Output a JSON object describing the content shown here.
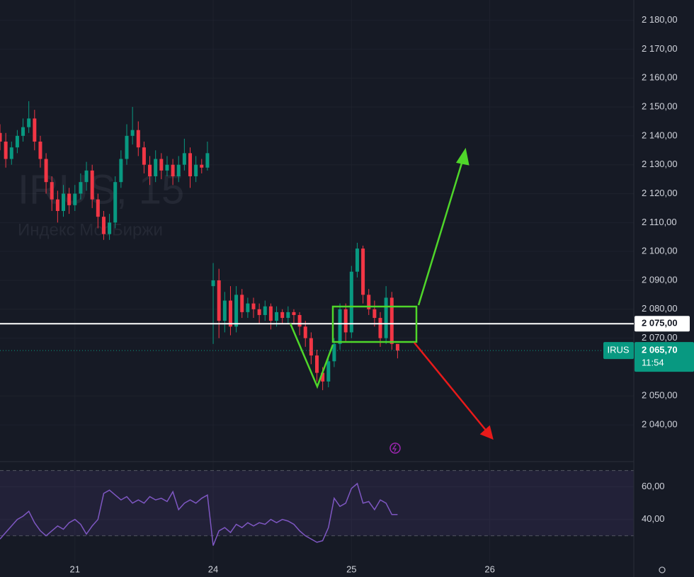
{
  "chart_data": [
    {
      "type": "candlestick",
      "watermark": {
        "symbol": "IRUS, 15",
        "name": "Индекс МосБиржи"
      },
      "x": [
        -13,
        -12,
        -11,
        -10,
        -9,
        -8,
        -7,
        -6,
        -5,
        -4,
        -3,
        -2,
        -1,
        0,
        1,
        2,
        3,
        4,
        5,
        6,
        7,
        8,
        9,
        10,
        11,
        12,
        13,
        14,
        15,
        16,
        17,
        18,
        19,
        20,
        21,
        22,
        23,
        24,
        25,
        26,
        27,
        28,
        29,
        30,
        31,
        32,
        33,
        34,
        35,
        36,
        37,
        38,
        39,
        40,
        41,
        42,
        43,
        44,
        45,
        46,
        47,
        48,
        49,
        50,
        51,
        52,
        53,
        54,
        55,
        56
      ],
      "open": [
        2141,
        2138,
        2132,
        2136,
        2140,
        2143,
        2146,
        2138,
        2132,
        2124,
        2118,
        2114,
        2120,
        2116,
        2120,
        2124,
        2128,
        2118,
        2112,
        2106,
        2110,
        2124,
        2132,
        2140,
        2142,
        2136,
        2130,
        2126,
        2132,
        2128,
        2130,
        2126,
        2130,
        2134,
        2126,
        2130,
        2129,
        2088,
        2090,
        2076,
        2083,
        2074,
        2085,
        2079,
        2082,
        2080,
        2078,
        2081,
        2076,
        2079,
        2077,
        2079,
        2078,
        2074,
        2070,
        2064,
        2058,
        2055,
        2062,
        2068,
        2080,
        2072,
        2093,
        2101,
        2085,
        2080,
        2077,
        2070,
        2084,
        2068
      ],
      "high": [
        2144,
        2141,
        2138,
        2142,
        2146,
        2152,
        2149,
        2140,
        2134,
        2126,
        2121,
        2123,
        2122,
        2123,
        2127,
        2131,
        2130,
        2120,
        2114,
        2113,
        2126,
        2135,
        2144,
        2150,
        2145,
        2138,
        2133,
        2135,
        2134,
        2133,
        2132,
        2133,
        2139,
        2136,
        2133,
        2132,
        2138,
        2096,
        2094,
        2086,
        2088,
        2088,
        2087,
        2084,
        2084,
        2082,
        2083,
        2082,
        2081,
        2080,
        2081,
        2080,
        2079,
        2076,
        2072,
        2066,
        2060,
        2064,
        2070,
        2082,
        2082,
        2095,
        2103,
        2102,
        2087,
        2083,
        2079,
        2088,
        2086,
        2068
      ],
      "low": [
        2135,
        2129,
        2130,
        2134,
        2138,
        2141,
        2135,
        2129,
        2120,
        2114,
        2110,
        2112,
        2113,
        2114,
        2118,
        2121,
        2115,
        2108,
        2104,
        2104,
        2108,
        2122,
        2130,
        2137,
        2133,
        2127,
        2123,
        2124,
        2125,
        2126,
        2123,
        2124,
        2128,
        2122,
        2124,
        2127,
        2128,
        2068,
        2070,
        2072,
        2071,
        2072,
        2077,
        2077,
        2077,
        2075,
        2076,
        2073,
        2074,
        2075,
        2075,
        2075,
        2071,
        2067,
        2061,
        2055,
        2052,
        2053,
        2060,
        2066,
        2069,
        2070,
        2091,
        2082,
        2078,
        2074,
        2067,
        2068,
        2066,
        2063
      ],
      "close": [
        2138,
        2132,
        2136,
        2140,
        2143,
        2146,
        2138,
        2132,
        2124,
        2118,
        2114,
        2120,
        2116,
        2120,
        2124,
        2128,
        2118,
        2112,
        2106,
        2110,
        2124,
        2132,
        2140,
        2142,
        2136,
        2130,
        2126,
        2132,
        2128,
        2130,
        2126,
        2130,
        2134,
        2126,
        2130,
        2129,
        2134,
        2090,
        2076,
        2083,
        2074,
        2085,
        2079,
        2082,
        2080,
        2078,
        2081,
        2076,
        2079,
        2077,
        2079,
        2078,
        2074,
        2070,
        2064,
        2058,
        2055,
        2062,
        2068,
        2080,
        2072,
        2093,
        2101,
        2085,
        2080,
        2077,
        2070,
        2084,
        2068,
        2065.7
      ],
      "up_color": "#089981",
      "down_color": "#f23645",
      "xlim": [
        -13,
        97
      ],
      "ylim": [
        2029,
        2187
      ],
      "yticks": [
        {
          "value": 2040,
          "label": "2 040,00"
        },
        {
          "value": 2050,
          "label": "2 050,00"
        },
        {
          "value": 2070,
          "label": "2 070,00"
        },
        {
          "value": 2080,
          "label": "2 080,00"
        },
        {
          "value": 2090,
          "label": "2 090,00"
        },
        {
          "value": 2100,
          "label": "2 100,00"
        },
        {
          "value": 2110,
          "label": "2 110,00"
        },
        {
          "value": 2120,
          "label": "2 120,00"
        },
        {
          "value": 2130,
          "label": "2 130,00"
        },
        {
          "value": 2140,
          "label": "2 140,00"
        },
        {
          "value": 2150,
          "label": "2 150,00"
        },
        {
          "value": 2160,
          "label": "2 160,00"
        },
        {
          "value": 2170,
          "label": "2 170,00"
        },
        {
          "value": 2180,
          "label": "2 180,00"
        }
      ],
      "grid": true,
      "hline": {
        "value": 2075,
        "label": "2 075,00"
      },
      "last_price": {
        "symbol": "IRUS",
        "value": 2065.7,
        "label": "2 065,70",
        "countdown": "11:54"
      }
    },
    {
      "type": "line",
      "x": [
        -13,
        -12,
        -11,
        -10,
        -9,
        -8,
        -7,
        -6,
        -5,
        -4,
        -3,
        -2,
        -1,
        0,
        1,
        2,
        3,
        4,
        5,
        6,
        7,
        8,
        9,
        10,
        11,
        12,
        13,
        14,
        15,
        16,
        17,
        18,
        19,
        20,
        21,
        22,
        23,
        24,
        25,
        26,
        27,
        28,
        29,
        30,
        31,
        32,
        33,
        34,
        35,
        36,
        37,
        38,
        39,
        40,
        41,
        42,
        43,
        44,
        45,
        46,
        47,
        48,
        49,
        50,
        51,
        52,
        53,
        54,
        55,
        56
      ],
      "values": [
        28,
        32,
        36,
        40,
        42,
        45,
        38,
        33,
        30,
        33,
        36,
        34,
        38,
        40,
        37,
        31,
        36,
        40,
        56,
        58,
        55,
        52,
        54,
        50,
        52,
        50,
        54,
        52,
        53,
        51,
        57,
        46,
        50,
        52,
        50,
        53,
        55,
        24,
        33,
        35,
        32,
        37,
        35,
        38,
        36,
        38,
        37,
        40,
        38,
        40,
        39,
        37,
        33,
        30,
        28,
        26,
        27,
        35,
        53,
        48,
        50,
        59,
        62,
        50,
        51,
        46,
        52,
        50,
        43,
        43
      ],
      "color": "#7e57c2",
      "band": [
        30,
        70
      ],
      "xlim": [
        -13,
        97
      ],
      "ylim": [
        16,
        72
      ],
      "yticks": [
        {
          "value": 40,
          "label": "40,00"
        },
        {
          "value": 60,
          "label": "60,00"
        }
      ],
      "xticks": [
        {
          "value": 0,
          "label": "21"
        },
        {
          "value": 24,
          "label": "24"
        },
        {
          "value": 48,
          "label": "25"
        },
        {
          "value": 72,
          "label": "26"
        }
      ],
      "grid": true
    }
  ]
}
